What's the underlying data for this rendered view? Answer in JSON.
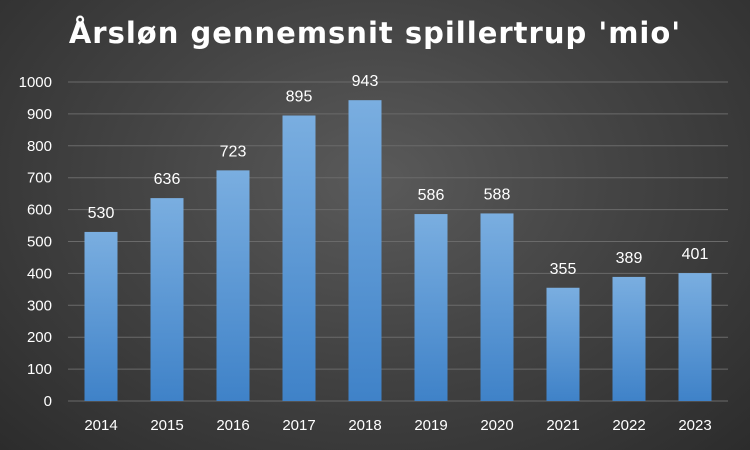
{
  "title": "Årsløn gennemsnit spillertrup 'mio'",
  "chart_data": {
    "type": "bar",
    "title": "Årsløn gennemsnit spillertrup 'mio'",
    "categories": [
      "2014",
      "2015",
      "2016",
      "2017",
      "2018",
      "2019",
      "2020",
      "2021",
      "2022",
      "2023"
    ],
    "values": [
      530,
      636,
      723,
      895,
      943,
      586,
      588,
      355,
      389,
      401
    ],
    "ylim": [
      0,
      1000
    ],
    "yticks": [
      0,
      100,
      200,
      300,
      400,
      500,
      600,
      700,
      800,
      900,
      1000
    ],
    "grid": true,
    "legend": "none",
    "colors": {
      "bar_top": "#7aaee0",
      "bar_bottom": "#3f82c8",
      "gridline": "#6a6a6a",
      "text": "#ffffff"
    }
  }
}
